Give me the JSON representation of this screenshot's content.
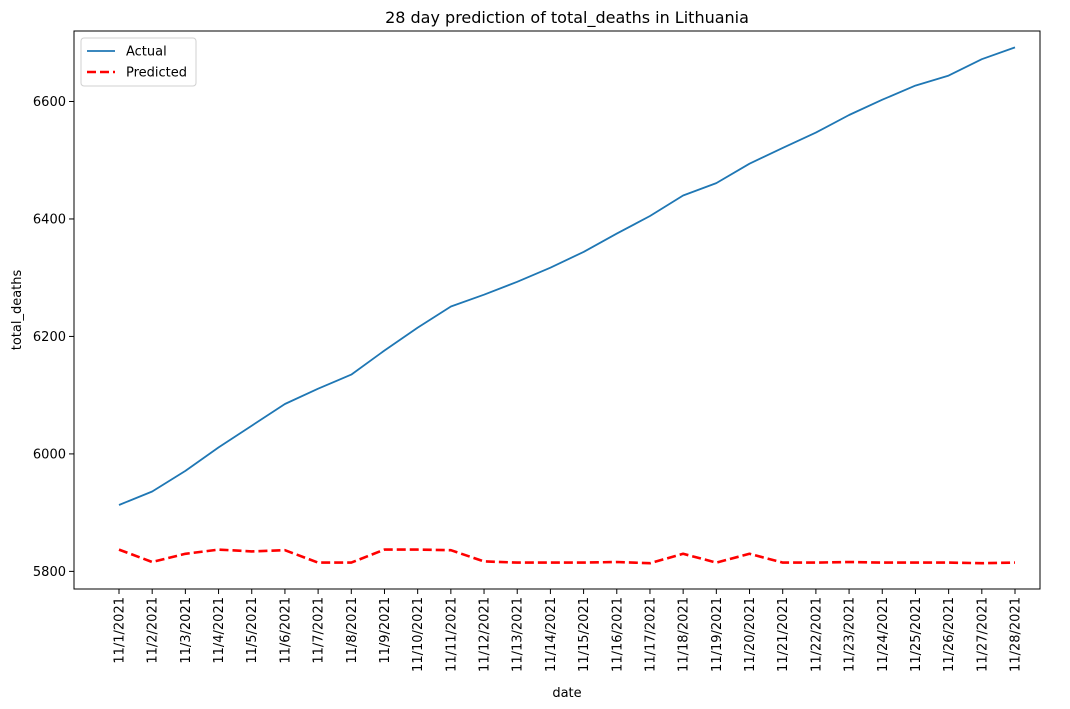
{
  "chart_data": {
    "type": "line",
    "title": "28 day prediction of total_deaths in Lithuania",
    "xlabel": "date",
    "ylabel": "total_deaths",
    "x": [
      "11/1/2021",
      "11/2/2021",
      "11/3/2021",
      "11/4/2021",
      "11/5/2021",
      "11/6/2021",
      "11/7/2021",
      "11/8/2021",
      "11/9/2021",
      "11/10/2021",
      "11/11/2021",
      "11/12/2021",
      "11/13/2021",
      "11/14/2021",
      "11/15/2021",
      "11/16/2021",
      "11/17/2021",
      "11/18/2021",
      "11/19/2021",
      "11/20/2021",
      "11/21/2021",
      "11/22/2021",
      "11/23/2021",
      "11/24/2021",
      "11/25/2021",
      "11/26/2021",
      "11/27/2021",
      "11/28/2021"
    ],
    "ylim": [
      5770,
      6720
    ],
    "yticks": [
      5800,
      6000,
      6200,
      6400,
      6600
    ],
    "grid": false,
    "legend_position": "top-left",
    "series": [
      {
        "name": "Actual",
        "color": "#1f77b4",
        "style": "solid",
        "values": [
          5913,
          5936,
          5971,
          6011,
          6048,
          6085,
          6111,
          6135,
          6176,
          6215,
          6251,
          6271,
          6293,
          6317,
          6344,
          6375,
          6405,
          6440,
          6461,
          6494,
          6521,
          6547,
          6577,
          6603,
          6627,
          6644,
          6672,
          6692
        ]
      },
      {
        "name": "Predicted",
        "color": "#ff0000",
        "style": "dashed",
        "values": [
          5837,
          5816,
          5830,
          5837,
          5834,
          5836,
          5815,
          5815,
          5837,
          5837,
          5836,
          5817,
          5815,
          5815,
          5815,
          5816,
          5814,
          5830,
          5815,
          5830,
          5815,
          5815,
          5816,
          5815,
          5815,
          5815,
          5814,
          5815
        ]
      }
    ]
  }
}
